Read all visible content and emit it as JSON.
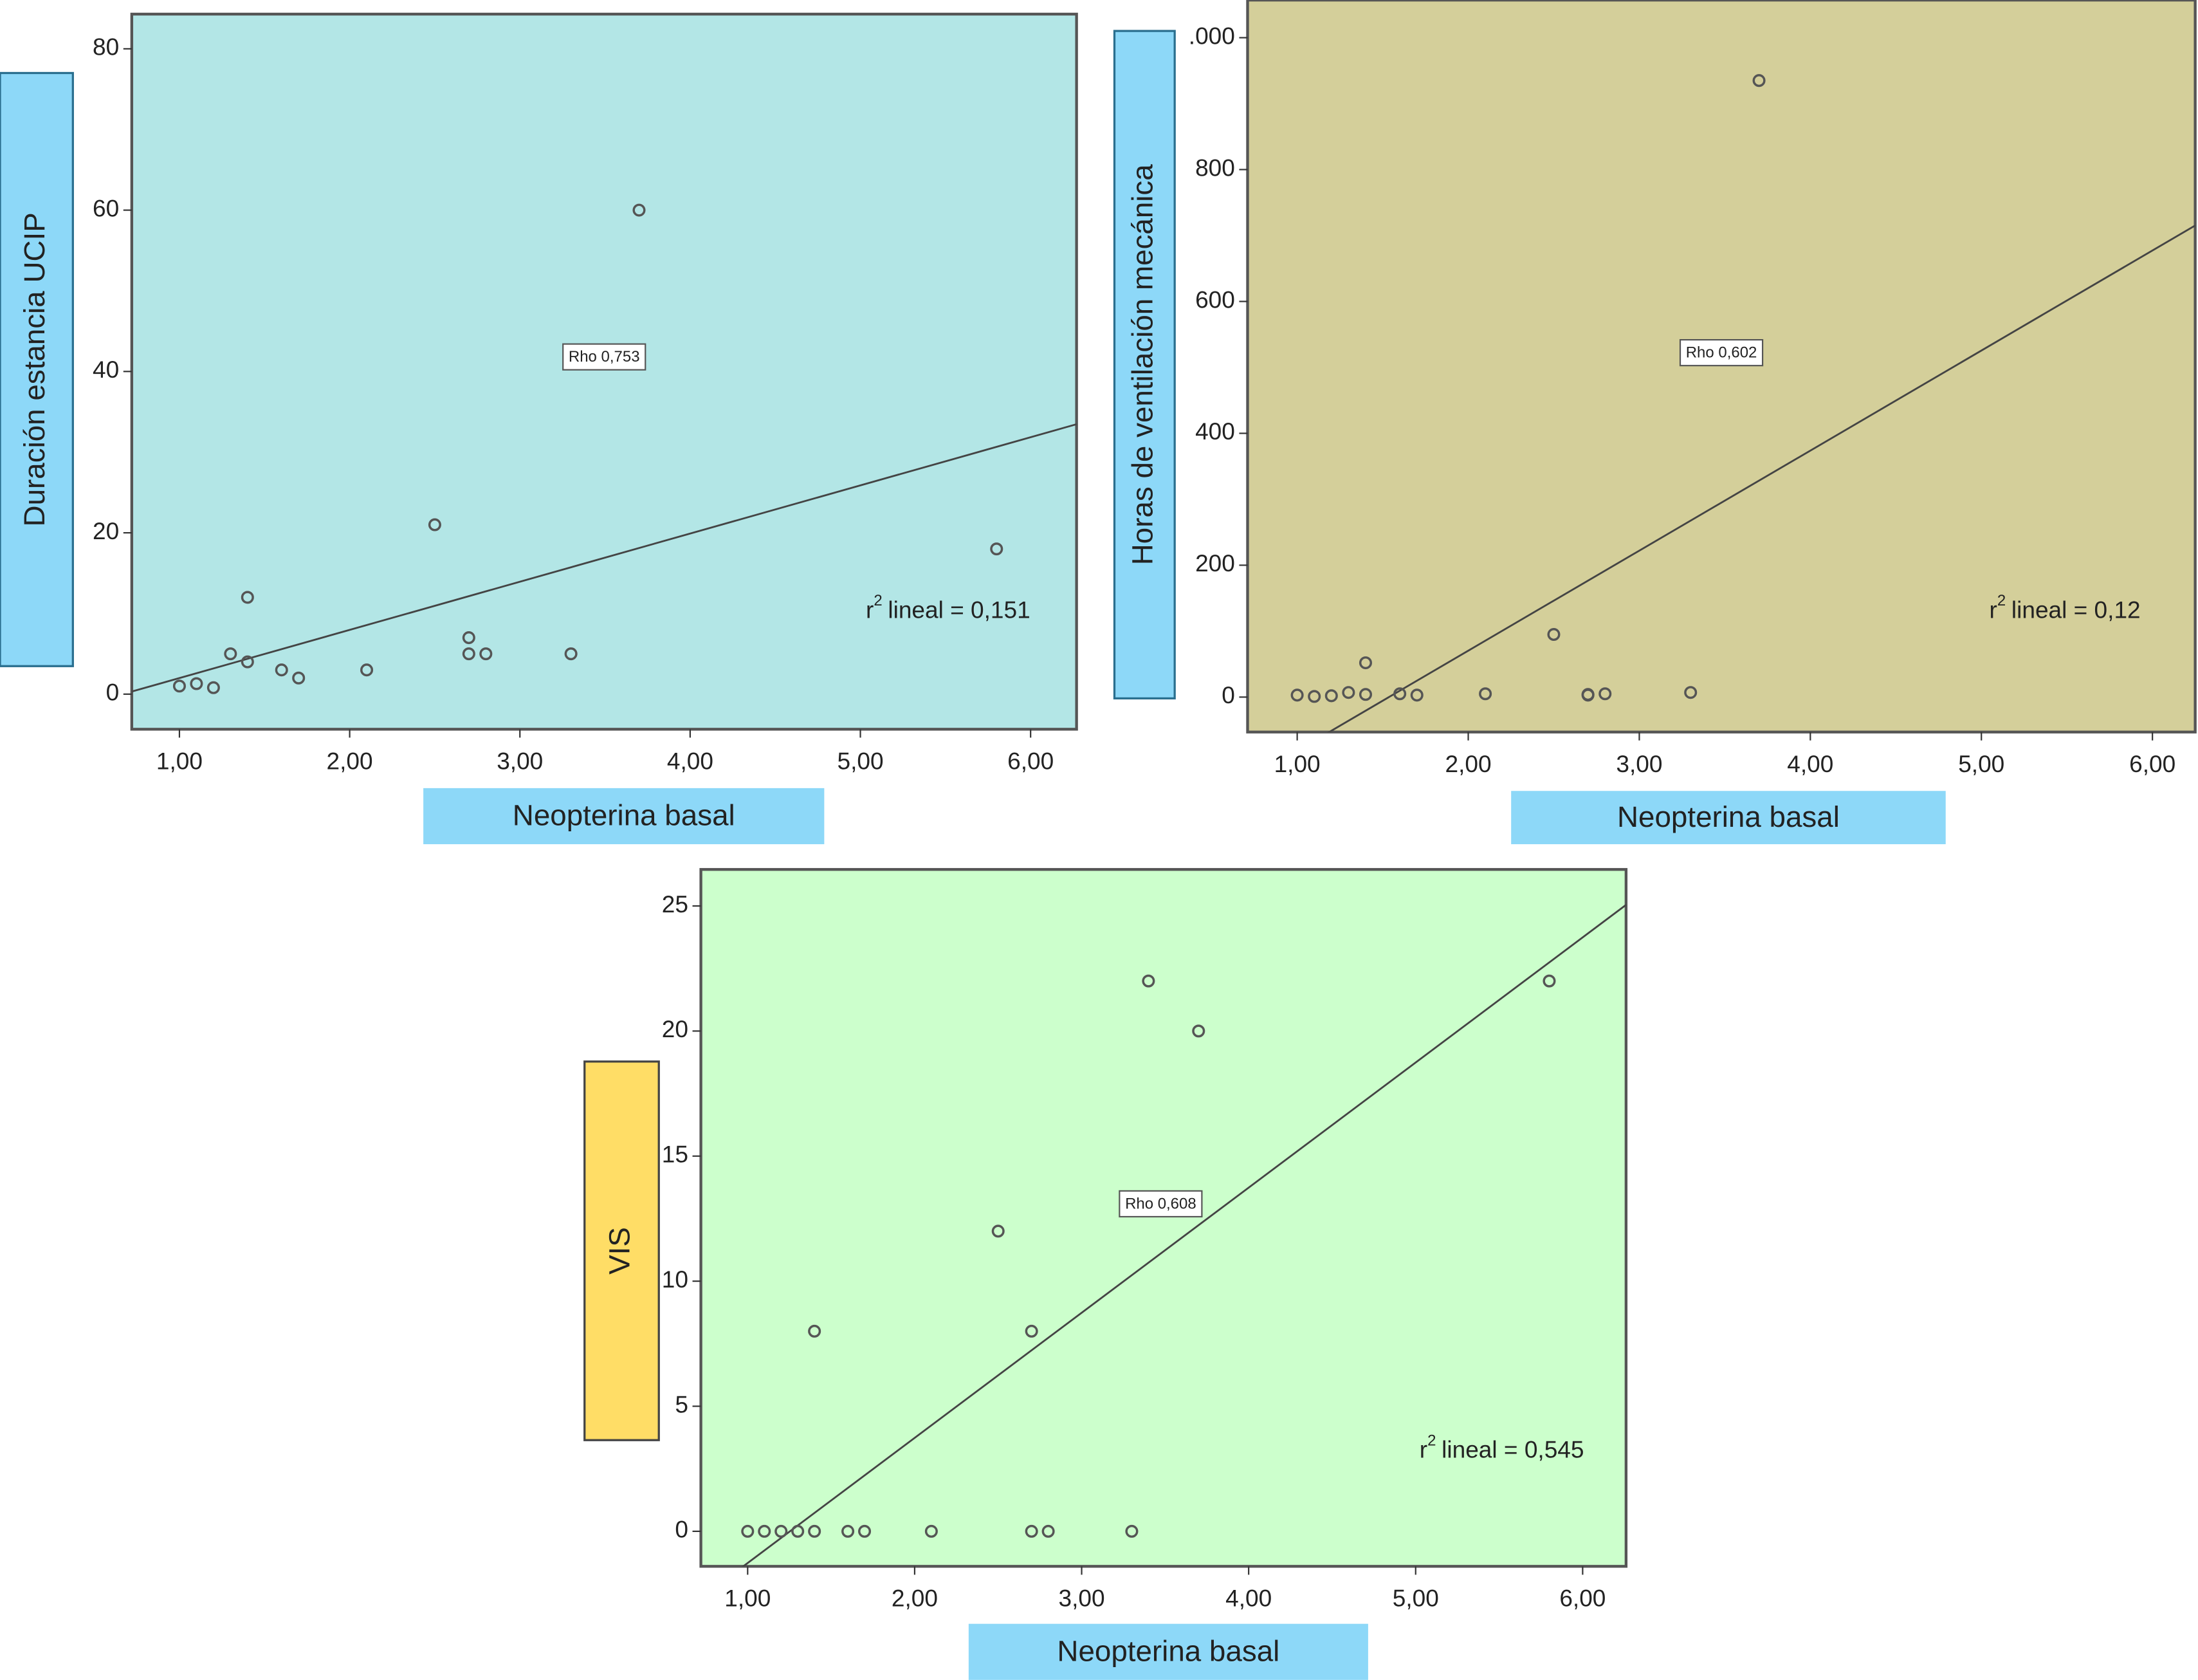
{
  "chart_data": [
    {
      "type": "scatter",
      "x_label": "Neopterina basal",
      "y_label": "Duración estancia UCIP",
      "x": [
        1.0,
        1.1,
        1.2,
        1.3,
        1.4,
        1.4,
        1.6,
        1.7,
        2.1,
        2.5,
        2.7,
        2.7,
        2.8,
        3.3,
        3.7,
        5.8
      ],
      "y": [
        1,
        1.3,
        0.8,
        5,
        4,
        12,
        3,
        2,
        3,
        21,
        7,
        5,
        5,
        5,
        60,
        18
      ],
      "xlim": [
        0.72,
        6.27
      ],
      "ylim": [
        -4.35,
        84.3
      ],
      "xticks": [
        {
          "value": 1,
          "label": "1,00"
        },
        {
          "value": 2,
          "label": "2,00"
        },
        {
          "value": 3,
          "label": "3,00"
        },
        {
          "value": 4,
          "label": "4,00"
        },
        {
          "value": 5,
          "label": "5,00"
        },
        {
          "value": 6,
          "label": "6,00"
        }
      ],
      "yticks": [
        0,
        20,
        40,
        60,
        80
      ],
      "background": "#b3e6e6",
      "y_label_color": "#8dd8f8",
      "rho_label": "Rho 0,753",
      "r2_label": {
        "base": "r",
        "sup": "2",
        "text": "lineal = 0,151"
      }
    },
    {
      "type": "scatter",
      "x_label": "Neopterina basal",
      "y_label": "Horas de ventilación mecánica",
      "x": [
        1.0,
        1.1,
        1.2,
        1.3,
        1.4,
        1.4,
        1.6,
        1.7,
        2.1,
        2.5,
        2.7,
        2.7,
        2.8,
        3.3,
        3.7
      ],
      "y": [
        3,
        1,
        2,
        7,
        4,
        52,
        5,
        3,
        5,
        95,
        3,
        4,
        5,
        7,
        935
      ],
      "xlim": [
        0.71,
        6.25
      ],
      "ylim": [
        -53,
        1057
      ],
      "xticks": [
        {
          "value": 1,
          "label": "1,00"
        },
        {
          "value": 2,
          "label": "2,00"
        },
        {
          "value": 3,
          "label": "3,00"
        },
        {
          "value": 4,
          "label": "4,00"
        },
        {
          "value": 5,
          "label": "5,00"
        },
        {
          "value": 6,
          "label": "6,00"
        }
      ],
      "yticks": [
        0,
        200,
        400,
        600,
        800,
        {
          "value": 1000,
          "label": ".000"
        }
      ],
      "background": "#d4cf9a",
      "y_label_color": "#8dd8f8",
      "rho_label": "Rho 0,602",
      "r2_label": {
        "base": "r",
        "sup": "2",
        "text": "lineal = 0,12"
      }
    },
    {
      "type": "scatter",
      "x_label": "Neopterina basal",
      "y_label": "VIS",
      "x": [
        1.0,
        1.1,
        1.2,
        1.3,
        1.4,
        1.4,
        1.6,
        1.7,
        2.1,
        2.5,
        2.7,
        2.7,
        2.8,
        3.3,
        3.4,
        3.7,
        5.8
      ],
      "y": [
        0,
        0,
        0,
        0,
        0,
        8,
        0,
        0,
        0,
        12,
        8,
        0,
        0,
        0,
        22,
        20,
        22
      ],
      "xlim": [
        0.72,
        6.26
      ],
      "ylim": [
        -1.4,
        26.46
      ],
      "xticks": [
        {
          "value": 1,
          "label": "1,00"
        },
        {
          "value": 2,
          "label": "2,00"
        },
        {
          "value": 3,
          "label": "3,00"
        },
        {
          "value": 4,
          "label": "4,00"
        },
        {
          "value": 5,
          "label": "5,00"
        },
        {
          "value": 6,
          "label": "6,00"
        }
      ],
      "yticks": [
        0,
        5,
        10,
        15,
        20,
        25
      ],
      "background": "#ccffcc",
      "y_label_color": "#ffdd66",
      "rho_label": "Rho 0,608",
      "r2_label": {
        "base": "r",
        "sup": "2",
        "text": "lineal = 0,545"
      }
    }
  ]
}
